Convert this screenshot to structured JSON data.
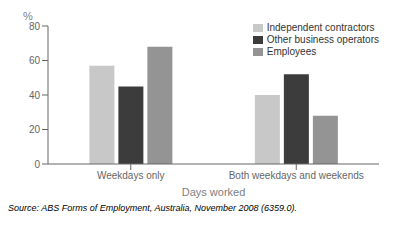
{
  "chart_data": {
    "type": "bar",
    "categories": [
      "Weekdays only",
      "Both weekdays and weekends"
    ],
    "series": [
      {
        "name": "Independent contractors",
        "color": "#c8c8c8",
        "values": [
          57,
          40
        ]
      },
      {
        "name": "Other business operators",
        "color": "#3c3c3c",
        "values": [
          45,
          52
        ]
      },
      {
        "name": "Employees",
        "color": "#949494",
        "values": [
          68,
          28
        ]
      }
    ],
    "ylabel": "%",
    "xlabel": "Days worked",
    "ylim": [
      0,
      80
    ],
    "yticks": [
      0,
      20,
      40,
      60,
      80
    ],
    "grid": false,
    "legend": "upper right",
    "annotations": [
      "Source: ABS Forms of Employment, Australia, November 2008 (6359.0)."
    ]
  }
}
